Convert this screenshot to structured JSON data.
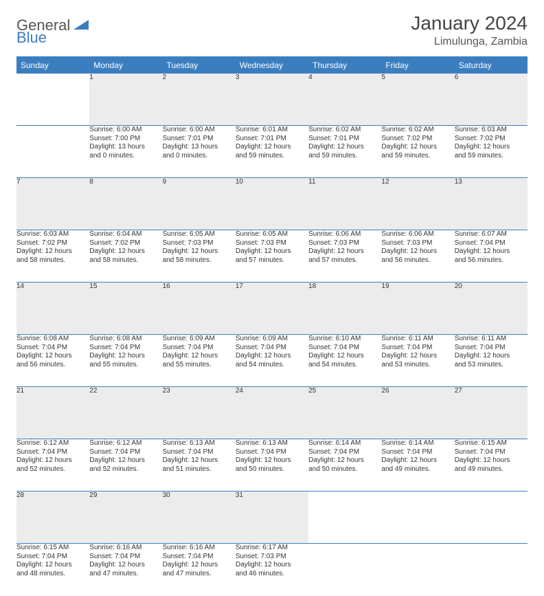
{
  "logo": {
    "text1": "General",
    "text2": "Blue"
  },
  "title": "January 2024",
  "location": "Limulunga, Zambia",
  "colors": {
    "header_bg": "#3b7ec0",
    "header_text": "#ffffff",
    "daynum_bg": "#ececec",
    "border": "#3b7ec0",
    "body_text": "#333333"
  },
  "day_headers": [
    "Sunday",
    "Monday",
    "Tuesday",
    "Wednesday",
    "Thursday",
    "Friday",
    "Saturday"
  ],
  "weeks": [
    {
      "nums": [
        "",
        "1",
        "2",
        "3",
        "4",
        "5",
        "6"
      ],
      "cells": [
        null,
        {
          "a": "Sunrise: 6:00 AM",
          "b": "Sunset: 7:00 PM",
          "c": "Daylight: 13 hours",
          "d": "and 0 minutes."
        },
        {
          "a": "Sunrise: 6:00 AM",
          "b": "Sunset: 7:01 PM",
          "c": "Daylight: 13 hours",
          "d": "and 0 minutes."
        },
        {
          "a": "Sunrise: 6:01 AM",
          "b": "Sunset: 7:01 PM",
          "c": "Daylight: 12 hours",
          "d": "and 59 minutes."
        },
        {
          "a": "Sunrise: 6:02 AM",
          "b": "Sunset: 7:01 PM",
          "c": "Daylight: 12 hours",
          "d": "and 59 minutes."
        },
        {
          "a": "Sunrise: 6:02 AM",
          "b": "Sunset: 7:02 PM",
          "c": "Daylight: 12 hours",
          "d": "and 59 minutes."
        },
        {
          "a": "Sunrise: 6:03 AM",
          "b": "Sunset: 7:02 PM",
          "c": "Daylight: 12 hours",
          "d": "and 59 minutes."
        }
      ]
    },
    {
      "nums": [
        "7",
        "8",
        "9",
        "10",
        "11",
        "12",
        "13"
      ],
      "cells": [
        {
          "a": "Sunrise: 6:03 AM",
          "b": "Sunset: 7:02 PM",
          "c": "Daylight: 12 hours",
          "d": "and 58 minutes."
        },
        {
          "a": "Sunrise: 6:04 AM",
          "b": "Sunset: 7:02 PM",
          "c": "Daylight: 12 hours",
          "d": "and 58 minutes."
        },
        {
          "a": "Sunrise: 6:05 AM",
          "b": "Sunset: 7:03 PM",
          "c": "Daylight: 12 hours",
          "d": "and 58 minutes."
        },
        {
          "a": "Sunrise: 6:05 AM",
          "b": "Sunset: 7:03 PM",
          "c": "Daylight: 12 hours",
          "d": "and 57 minutes."
        },
        {
          "a": "Sunrise: 6:06 AM",
          "b": "Sunset: 7:03 PM",
          "c": "Daylight: 12 hours",
          "d": "and 57 minutes."
        },
        {
          "a": "Sunrise: 6:06 AM",
          "b": "Sunset: 7:03 PM",
          "c": "Daylight: 12 hours",
          "d": "and 56 minutes."
        },
        {
          "a": "Sunrise: 6:07 AM",
          "b": "Sunset: 7:04 PM",
          "c": "Daylight: 12 hours",
          "d": "and 56 minutes."
        }
      ]
    },
    {
      "nums": [
        "14",
        "15",
        "16",
        "17",
        "18",
        "19",
        "20"
      ],
      "cells": [
        {
          "a": "Sunrise: 6:08 AM",
          "b": "Sunset: 7:04 PM",
          "c": "Daylight: 12 hours",
          "d": "and 56 minutes."
        },
        {
          "a": "Sunrise: 6:08 AM",
          "b": "Sunset: 7:04 PM",
          "c": "Daylight: 12 hours",
          "d": "and 55 minutes."
        },
        {
          "a": "Sunrise: 6:09 AM",
          "b": "Sunset: 7:04 PM",
          "c": "Daylight: 12 hours",
          "d": "and 55 minutes."
        },
        {
          "a": "Sunrise: 6:09 AM",
          "b": "Sunset: 7:04 PM",
          "c": "Daylight: 12 hours",
          "d": "and 54 minutes."
        },
        {
          "a": "Sunrise: 6:10 AM",
          "b": "Sunset: 7:04 PM",
          "c": "Daylight: 12 hours",
          "d": "and 54 minutes."
        },
        {
          "a": "Sunrise: 6:11 AM",
          "b": "Sunset: 7:04 PM",
          "c": "Daylight: 12 hours",
          "d": "and 53 minutes."
        },
        {
          "a": "Sunrise: 6:11 AM",
          "b": "Sunset: 7:04 PM",
          "c": "Daylight: 12 hours",
          "d": "and 53 minutes."
        }
      ]
    },
    {
      "nums": [
        "21",
        "22",
        "23",
        "24",
        "25",
        "26",
        "27"
      ],
      "cells": [
        {
          "a": "Sunrise: 6:12 AM",
          "b": "Sunset: 7:04 PM",
          "c": "Daylight: 12 hours",
          "d": "and 52 minutes."
        },
        {
          "a": "Sunrise: 6:12 AM",
          "b": "Sunset: 7:04 PM",
          "c": "Daylight: 12 hours",
          "d": "and 52 minutes."
        },
        {
          "a": "Sunrise: 6:13 AM",
          "b": "Sunset: 7:04 PM",
          "c": "Daylight: 12 hours",
          "d": "and 51 minutes."
        },
        {
          "a": "Sunrise: 6:13 AM",
          "b": "Sunset: 7:04 PM",
          "c": "Daylight: 12 hours",
          "d": "and 50 minutes."
        },
        {
          "a": "Sunrise: 6:14 AM",
          "b": "Sunset: 7:04 PM",
          "c": "Daylight: 12 hours",
          "d": "and 50 minutes."
        },
        {
          "a": "Sunrise: 6:14 AM",
          "b": "Sunset: 7:04 PM",
          "c": "Daylight: 12 hours",
          "d": "and 49 minutes."
        },
        {
          "a": "Sunrise: 6:15 AM",
          "b": "Sunset: 7:04 PM",
          "c": "Daylight: 12 hours",
          "d": "and 49 minutes."
        }
      ]
    },
    {
      "nums": [
        "28",
        "29",
        "30",
        "31",
        "",
        "",
        ""
      ],
      "cells": [
        {
          "a": "Sunrise: 6:15 AM",
          "b": "Sunset: 7:04 PM",
          "c": "Daylight: 12 hours",
          "d": "and 48 minutes."
        },
        {
          "a": "Sunrise: 6:16 AM",
          "b": "Sunset: 7:04 PM",
          "c": "Daylight: 12 hours",
          "d": "and 47 minutes."
        },
        {
          "a": "Sunrise: 6:16 AM",
          "b": "Sunset: 7:04 PM",
          "c": "Daylight: 12 hours",
          "d": "and 47 minutes."
        },
        {
          "a": "Sunrise: 6:17 AM",
          "b": "Sunset: 7:03 PM",
          "c": "Daylight: 12 hours",
          "d": "and 46 minutes."
        },
        null,
        null,
        null
      ]
    }
  ]
}
